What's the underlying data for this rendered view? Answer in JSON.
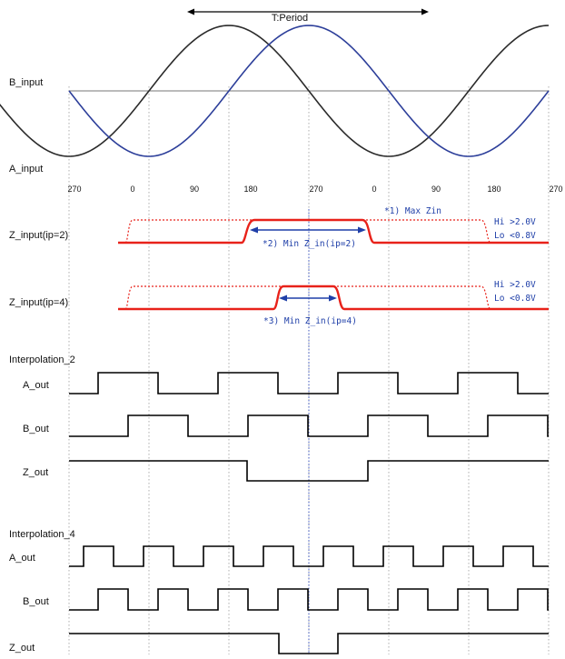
{
  "colors": {
    "a_wave": "#2b2b2b",
    "b_wave": "#2d3f9a",
    "z_signal": "#e8221a",
    "annotation": "#1f3fa8",
    "digital": "#000000",
    "guide": "#9a9a9a",
    "center_guide": "#2040c0"
  },
  "period_label": "T:Period",
  "analog": {
    "b_input_label": "B_input",
    "a_input_label": "A_input"
  },
  "phase_ticks": [
    "270",
    "0",
    "90",
    "180",
    "270",
    "0",
    "90",
    "180",
    "270"
  ],
  "z_input": {
    "ip2_label": "Z_input(ip=2)",
    "ip4_label": "Z_input(ip=4)",
    "max_zin_note": "*1) Max Zin",
    "min_zin_ip2_note": "*2) Min Z_in(ip=2)",
    "min_zin_ip4_note": "*3) Min Z_in(ip=4)",
    "hi_level": "Hi >2.0V",
    "lo_level": "Lo <0.8V"
  },
  "interpolation_2": {
    "title": "Interpolation_2",
    "a_out_label": "A_out",
    "b_out_label": "B_out",
    "z_out_label": "Z_out"
  },
  "interpolation_4": {
    "title": "Interpolation_4",
    "a_out_label": "A_out",
    "b_out_label": "B_out",
    "z_out_label": "Z_out"
  }
}
